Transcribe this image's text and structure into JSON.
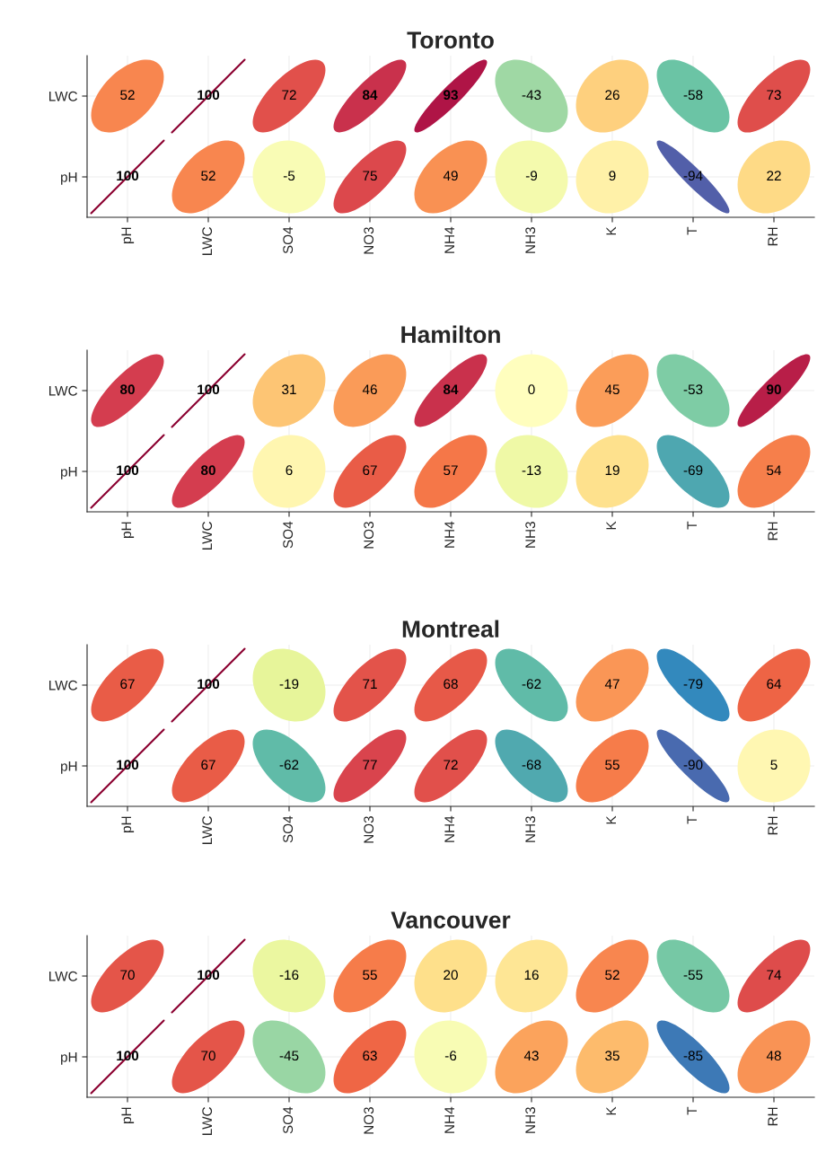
{
  "chart_data": [
    {
      "type": "heatmap",
      "title": "Toronto",
      "data_labels": true,
      "categories": [
        "pH",
        "LWC",
        "SO4",
        "NO3",
        "NH4",
        "NH3",
        "K",
        "T",
        "RH"
      ],
      "y_categories": [
        "LWC",
        "pH"
      ],
      "grid": true,
      "cells": [
        [
          52,
          100,
          72,
          84,
          93,
          -43,
          26,
          -58,
          73
        ],
        [
          100,
          52,
          -5,
          75,
          49,
          -9,
          9,
          -94,
          22
        ]
      ]
    },
    {
      "type": "heatmap",
      "title": "Hamilton",
      "data_labels": true,
      "categories": [
        "pH",
        "LWC",
        "SO4",
        "NO3",
        "NH4",
        "NH3",
        "K",
        "T",
        "RH"
      ],
      "y_categories": [
        "LWC",
        "pH"
      ],
      "grid": true,
      "cells": [
        [
          80,
          100,
          31,
          46,
          84,
          0,
          45,
          -53,
          90
        ],
        [
          100,
          80,
          6,
          67,
          57,
          -13,
          19,
          -69,
          54
        ]
      ]
    },
    {
      "type": "heatmap",
      "title": "Montreal",
      "data_labels": true,
      "categories": [
        "pH",
        "LWC",
        "SO4",
        "NO3",
        "NH4",
        "NH3",
        "K",
        "T",
        "RH"
      ],
      "y_categories": [
        "LWC",
        "pH"
      ],
      "grid": true,
      "cells": [
        [
          67,
          100,
          -19,
          71,
          68,
          -62,
          47,
          -79,
          64
        ],
        [
          100,
          67,
          -62,
          77,
          72,
          -68,
          55,
          -90,
          5
        ]
      ]
    },
    {
      "type": "heatmap",
      "title": "Vancouver",
      "data_labels": true,
      "categories": [
        "pH",
        "LWC",
        "SO4",
        "NO3",
        "NH4",
        "NH3",
        "K",
        "T",
        "RH"
      ],
      "y_categories": [
        "LWC",
        "pH"
      ],
      "grid": true,
      "cells": [
        [
          70,
          100,
          -16,
          55,
          20,
          16,
          52,
          -55,
          74
        ],
        [
          100,
          70,
          -45,
          63,
          -6,
          43,
          35,
          -85,
          48
        ]
      ]
    }
  ]
}
